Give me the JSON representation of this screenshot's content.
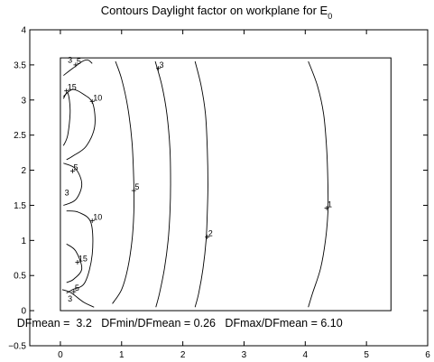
{
  "chart_data": {
    "type": "contour",
    "title": "Contours Daylight factor on workplane  for E",
    "title_subscript": "0",
    "xlabel": "",
    "ylabel": "",
    "xlim": [
      -0.5,
      6
    ],
    "ylim": [
      -0.5,
      4
    ],
    "x_ticks": [
      0,
      1,
      2,
      3,
      4,
      5,
      6
    ],
    "y_ticks": [
      -0.5,
      0,
      0.5,
      1,
      1.5,
      2,
      2.5,
      3,
      3.5,
      4
    ],
    "x_tick_labels": [
      "0",
      "1",
      "2",
      "3",
      "4",
      "5",
      "6"
    ],
    "y_tick_labels": [
      "−0.5",
      "0",
      "0.5",
      "1",
      "1.5",
      "2",
      "2.5",
      "3",
      "3.5",
      "4"
    ],
    "workplane": {
      "x": [
        0,
        5.4
      ],
      "y": [
        0,
        3.6
      ]
    },
    "contours": [
      {
        "level": "1",
        "x": [
          4.05,
          4.2,
          4.3,
          4.35,
          4.37,
          4.37,
          4.33,
          4.25,
          4.12,
          4.05
        ],
        "y": [
          3.55,
          3.2,
          2.8,
          2.3,
          1.8,
          1.4,
          1.0,
          0.6,
          0.25,
          0.05
        ],
        "label_at": [
          4.35,
          1.46
        ]
      },
      {
        "level": "2",
        "x": [
          2.2,
          2.3,
          2.37,
          2.4,
          2.41,
          2.4,
          2.38,
          2.33,
          2.26,
          2.2
        ],
        "y": [
          3.55,
          3.2,
          2.8,
          2.3,
          1.8,
          1.4,
          1.0,
          0.6,
          0.25,
          0.05
        ],
        "label_at": [
          2.4,
          1.05
        ]
      },
      {
        "level": "3",
        "x": [
          1.55,
          1.66,
          1.74,
          1.79,
          1.8,
          1.79,
          1.76,
          1.7,
          1.62,
          1.56
        ],
        "y": [
          3.55,
          3.2,
          2.8,
          2.3,
          1.8,
          1.4,
          1.0,
          0.6,
          0.25,
          0.05
        ],
        "label_at": [
          1.6,
          3.45
        ]
      },
      {
        "level": "5",
        "x": [
          0.9,
          1.0,
          1.1,
          1.17,
          1.2,
          1.2,
          1.17,
          1.1,
          1.0,
          0.85
        ],
        "y": [
          3.55,
          3.3,
          2.9,
          2.4,
          1.8,
          1.4,
          1.0,
          0.6,
          0.3,
          0.1
        ],
        "label_at": [
          1.2,
          1.71
        ]
      },
      {
        "level": "5",
        "x": [
          0.05,
          0.2,
          0.36,
          0.45,
          0.52
        ],
        "y": [
          3.35,
          3.45,
          3.55,
          3.57,
          3.52
        ],
        "label_at": [
          0.25,
          3.5
        ]
      },
      {
        "level": "10",
        "x": [
          0.05,
          0.2,
          0.38,
          0.53,
          0.56,
          0.42,
          0.2,
          0.1
        ],
        "y": [
          3.05,
          3.15,
          3.08,
          2.95,
          2.62,
          2.34,
          2.2,
          2.15
        ],
        "label_at": [
          0.52,
          2.98
        ]
      },
      {
        "level": "15",
        "x": [
          0.05,
          0.12,
          0.16,
          0.12,
          0.05
        ],
        "y": [
          3.02,
          3.1,
          2.85,
          2.5,
          2.35
        ],
        "label_at": [
          0.1,
          3.13
        ]
      },
      {
        "level": "5",
        "x": [
          0.05,
          0.25,
          0.35,
          0.25,
          0.05
        ],
        "y": [
          2.1,
          2.02,
          1.8,
          1.58,
          1.5
        ],
        "label_at": [
          0.2,
          1.99
        ]
      },
      {
        "level": "10",
        "x": [
          0.1,
          0.3,
          0.5,
          0.52,
          0.4,
          0.2,
          0.1
        ],
        "y": [
          1.42,
          1.4,
          1.25,
          0.8,
          0.4,
          0.3,
          0.25
        ],
        "label_at": [
          0.52,
          1.28
        ]
      },
      {
        "level": "15",
        "x": [
          0.1,
          0.25,
          0.35,
          0.22,
          0.1
        ],
        "y": [
          0.95,
          0.85,
          0.6,
          0.45,
          0.4
        ],
        "label_at": [
          0.28,
          0.69
        ]
      },
      {
        "level": "5",
        "x": [
          0.03,
          0.18,
          0.38,
          0.55
        ],
        "y": [
          0.3,
          0.25,
          0.12,
          0.05
        ],
        "label_at": [
          0.22,
          0.27
        ]
      }
    ],
    "inline_labels": [
      {
        "text": "3",
        "at": [
          0.12,
          3.53
        ]
      },
      {
        "text": "3",
        "at": [
          0.07,
          1.64
        ]
      },
      {
        "text": "3",
        "at": [
          0.12,
          0.13
        ]
      }
    ],
    "stats": {
      "text": "DFmean =  3.2   DFmin/DFmean = 0.26   DFmax/DFmean = 6.10"
    }
  }
}
